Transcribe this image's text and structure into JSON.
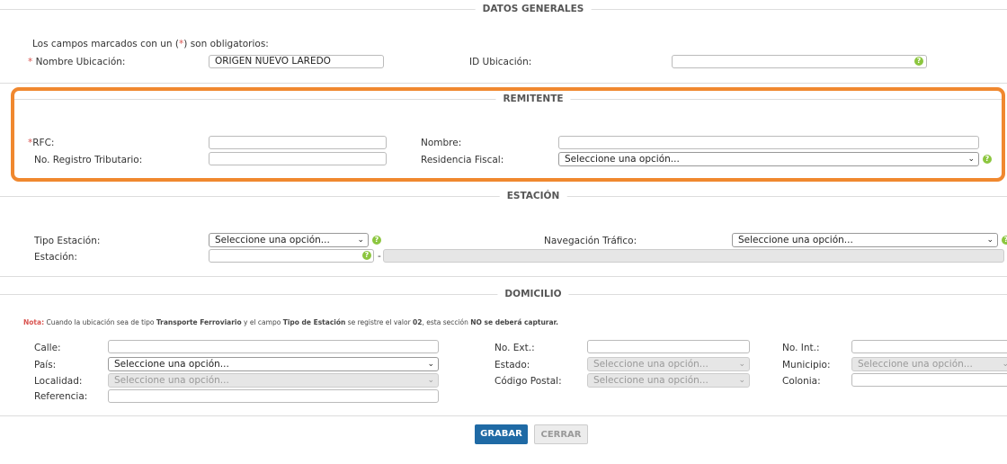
{
  "sections": {
    "general": "DATOS GENERALES",
    "remitente": "REMITENTE",
    "estacion": "ESTACIÓN",
    "domicilio": "DOMICILIO"
  },
  "general": {
    "required_note_pre": "Los campos marcados con un (",
    "required_note_star": "*",
    "required_note_post": ") son obligatorios:",
    "nombre_label": "Nombre Ubicación:",
    "nombre_value": "ORIGEN NUEVO LAREDO",
    "id_label": "ID Ubicación:",
    "id_value": ""
  },
  "remitente": {
    "rfc_label": "RFC:",
    "registro_label": "No. Registro Tributario:",
    "nombre_label": "Nombre:",
    "residencia_label": "Residencia Fiscal:",
    "residencia_value": "Seleccione una opción..."
  },
  "estacion": {
    "tipo_label": "Tipo Estación:",
    "tipo_value": "Seleccione una opción...",
    "estacion_label": "Estación:",
    "navegacion_label": "Navegación Tráfico:",
    "navegacion_value": "Seleccione una opción...",
    "separator": "-"
  },
  "domicilio": {
    "nota_label": "Nota:",
    "nota_1": " Cuando la ubicación sea de tipo ",
    "nota_b1": "Transporte Ferroviario",
    "nota_2": " y el campo ",
    "nota_b2": "Tipo de Estación",
    "nota_3": " se registre el valor ",
    "nota_b3": "02",
    "nota_4": ", esta sección ",
    "nota_b4": "NO se deberá capturar.",
    "calle_label": "Calle:",
    "pais_label": "País:",
    "pais_value": "Seleccione una opción...",
    "localidad_label": "Localidad:",
    "localidad_value": "Seleccione una opción...",
    "referencia_label": "Referencia:",
    "ext_label": "No. Ext.:",
    "estado_label": "Estado:",
    "estado_value": "Seleccione una opción...",
    "cp_label": "Código Postal:",
    "cp_value": "Seleccione una opción...",
    "int_label": "No. Int.:",
    "municipio_label": "Municipio:",
    "municipio_value": "Seleccione una opción...",
    "colonia_label": "Colonia:"
  },
  "buttons": {
    "grabar": "GRABAR",
    "cerrar": "CERRAR"
  },
  "colors": {
    "highlight": "#f0882f",
    "primary": "#1f6aa5",
    "help": "#8cc63f"
  }
}
